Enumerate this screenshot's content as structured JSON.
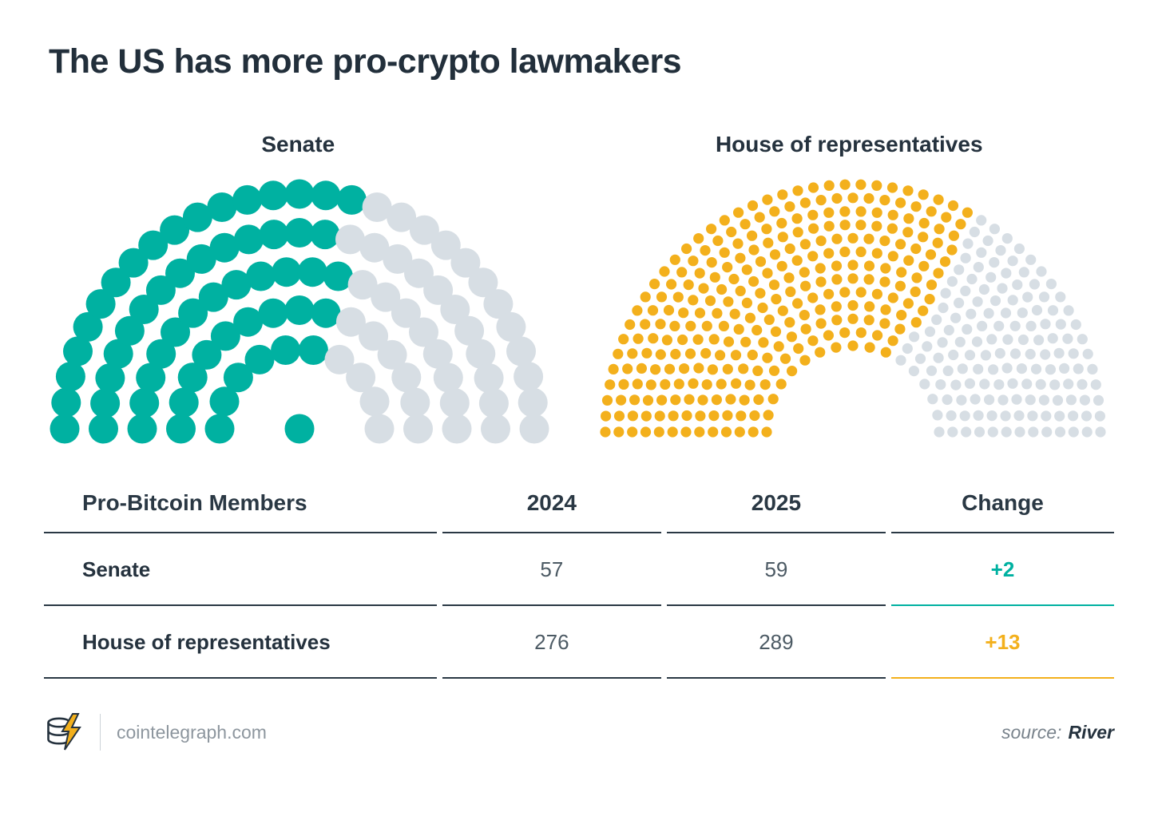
{
  "title": "The US has more pro-crypto lawmakers",
  "colors": {
    "teal": "#00B1A1",
    "yellow": "#F3B01C",
    "dark_navy": "#25323E",
    "seat_gray": "#D7DEE4"
  },
  "chart_data": [
    {
      "type": "parliament",
      "title": "Senate",
      "total_seats": 100,
      "highlighted_seats": 59,
      "highlight_color": "#00B1A1",
      "other_color": "#D7DEE4",
      "legend_position": "none",
      "layout": {
        "rows": 5,
        "center_seat": true
      }
    },
    {
      "type": "parliament",
      "title": "House of representatives",
      "total_seats": 435,
      "highlighted_seats": 289,
      "highlight_color": "#F3B01C",
      "other_color": "#D7DEE4",
      "legend_position": "none",
      "layout": {
        "rows": 13,
        "center_seat": false
      }
    }
  ],
  "table": {
    "headers": [
      "Pro-Bitcoin Members",
      "2024",
      "2025",
      "Change"
    ],
    "rows": [
      {
        "label": "Senate",
        "values": [
          "57",
          "59"
        ],
        "change": "+2",
        "change_color": "#00B1A1"
      },
      {
        "label": "House of representatives",
        "values": [
          "276",
          "289"
        ],
        "change": "+13",
        "change_color": "#F3B01C"
      }
    ]
  },
  "footer": {
    "site": "cointelegraph.com",
    "source_label": "source:",
    "source_value": "River"
  },
  "icons": {
    "logo": "cointelegraph-coin-stack-lightning-logo"
  }
}
